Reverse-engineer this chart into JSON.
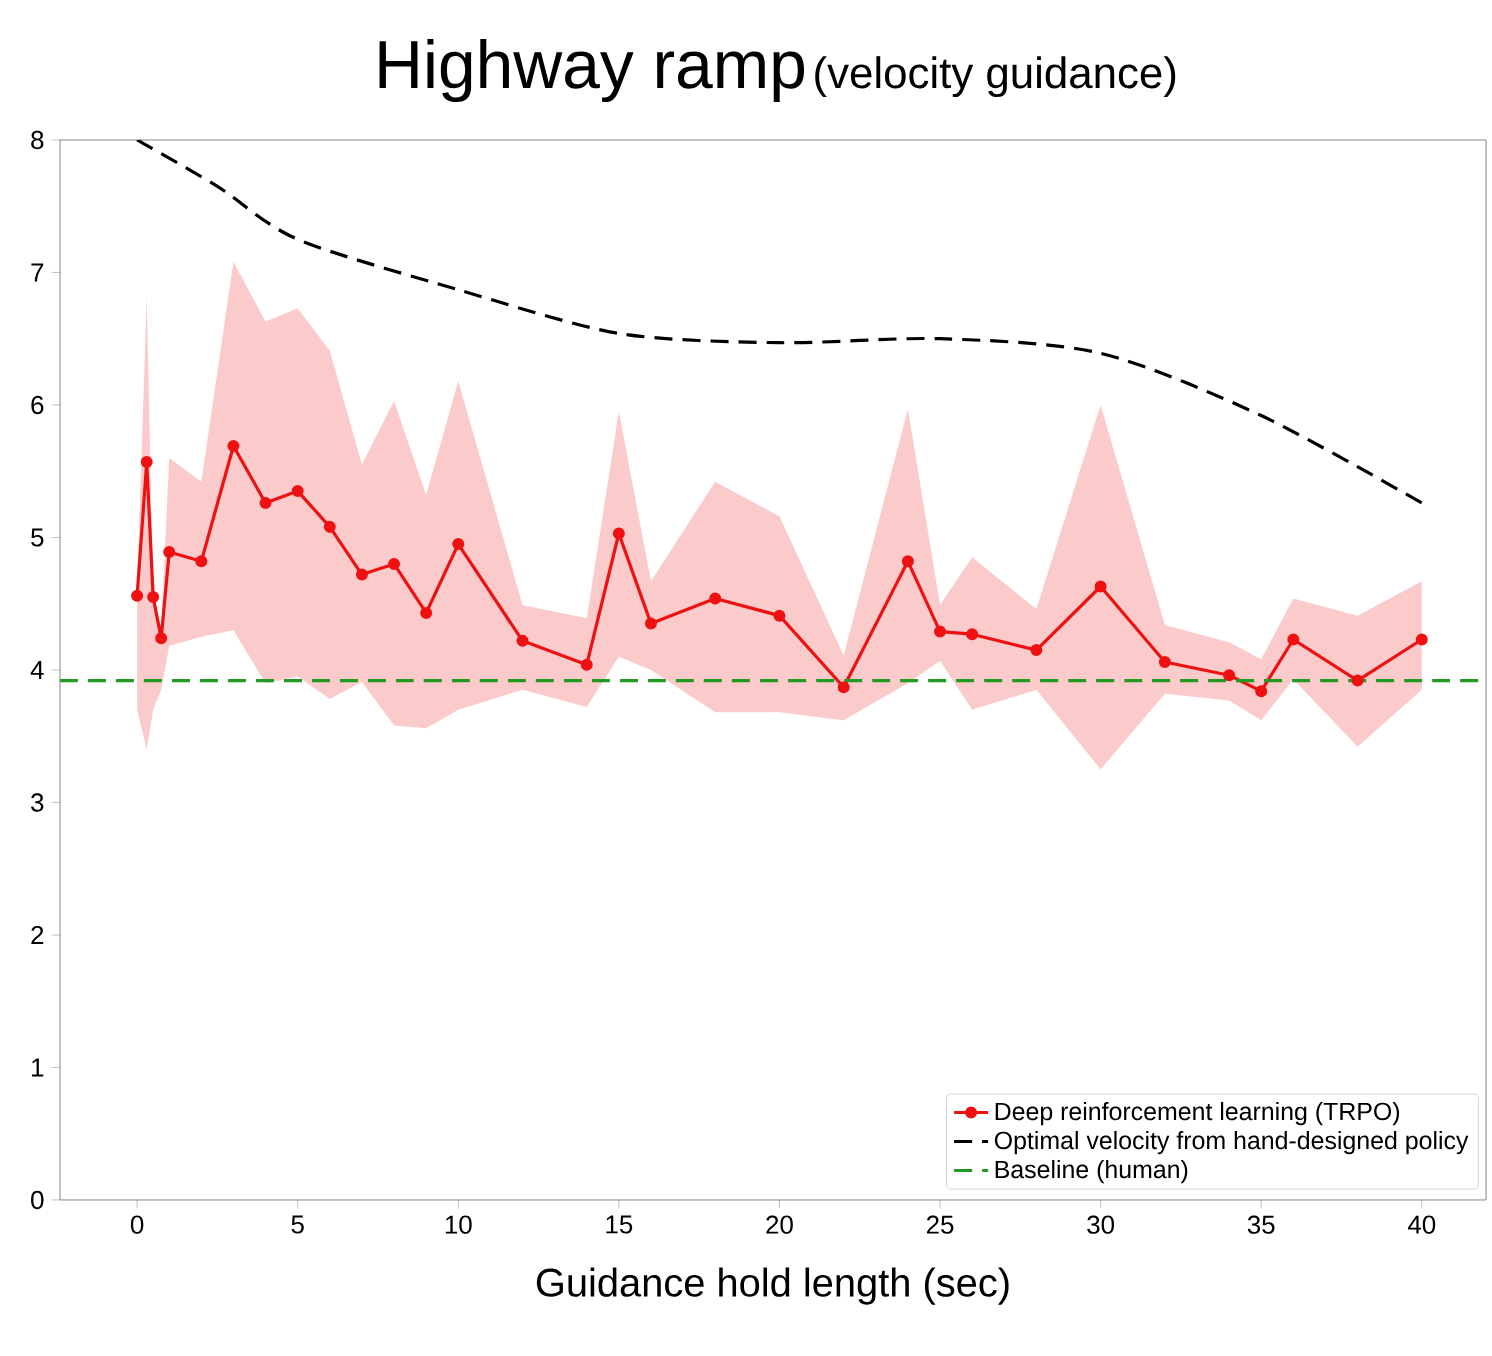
{
  "chart_data": {
    "type": "line",
    "title": "Highway ramp",
    "subtitle": "(velocity guidance)",
    "xlabel": "Guidance hold length (sec)",
    "xlim": [
      -2.4,
      42
    ],
    "ylim": [
      0,
      8
    ],
    "xticks": [
      0,
      5,
      10,
      15,
      20,
      25,
      30,
      35,
      40
    ],
    "yticks": [
      0,
      1,
      2,
      3,
      4,
      5,
      6,
      7,
      8
    ],
    "grid": false,
    "legend": "bottom right",
    "series": [
      {
        "name": "Deep reinforcement learning (TRPO)",
        "color": "#ee1111",
        "marker": "circle",
        "line_style": "solid",
        "x": [
          0,
          0.3,
          0.5,
          0.75,
          1,
          2,
          3,
          4,
          5,
          6,
          7,
          8,
          9,
          10,
          12,
          14,
          15,
          16,
          18,
          20,
          22,
          24,
          25,
          26,
          28,
          30,
          32,
          34,
          35,
          36,
          38,
          40
        ],
        "values": [
          4.56,
          5.57,
          4.55,
          4.24,
          4.89,
          4.82,
          5.69,
          5.26,
          5.35,
          5.08,
          4.72,
          4.8,
          4.43,
          4.95,
          4.22,
          4.04,
          5.03,
          4.35,
          4.54,
          4.41,
          3.87,
          4.82,
          4.29,
          4.27,
          4.15,
          4.63,
          4.06,
          3.96,
          3.84,
          4.23,
          3.92,
          4.23
        ],
        "upper": [
          4.6,
          6.82,
          4.6,
          4.3,
          5.6,
          5.42,
          7.08,
          6.63,
          6.73,
          6.41,
          5.55,
          6.03,
          5.32,
          6.18,
          4.49,
          4.39,
          5.95,
          4.67,
          5.42,
          5.16,
          4.11,
          5.97,
          4.49,
          4.85,
          4.46,
          6.0,
          4.34,
          4.21,
          4.08,
          4.54,
          4.41,
          4.67
        ],
        "lower": [
          3.7,
          3.4,
          3.7,
          3.85,
          4.18,
          4.25,
          4.3,
          3.9,
          3.95,
          3.78,
          3.91,
          3.58,
          3.56,
          3.7,
          3.85,
          3.72,
          4.1,
          4.0,
          3.68,
          3.68,
          3.62,
          3.9,
          4.07,
          3.7,
          3.85,
          3.25,
          3.82,
          3.77,
          3.62,
          3.93,
          3.42,
          3.85
        ]
      },
      {
        "name": "Optimal velocity from hand-designed policy",
        "color": "#000000",
        "marker": "none",
        "line_style": "dashed",
        "x": [
          0,
          2.5,
          5,
          10,
          15,
          20,
          25,
          30,
          35,
          40
        ],
        "values": [
          8.0,
          7.65,
          7.25,
          6.87,
          6.54,
          6.47,
          6.5,
          6.39,
          5.92,
          5.26
        ]
      },
      {
        "name": "Baseline (human)",
        "color": "#229922",
        "marker": "none",
        "line_style": "dashed",
        "x": [
          -2.4,
          42
        ],
        "values": [
          3.92,
          3.92
        ]
      }
    ]
  }
}
